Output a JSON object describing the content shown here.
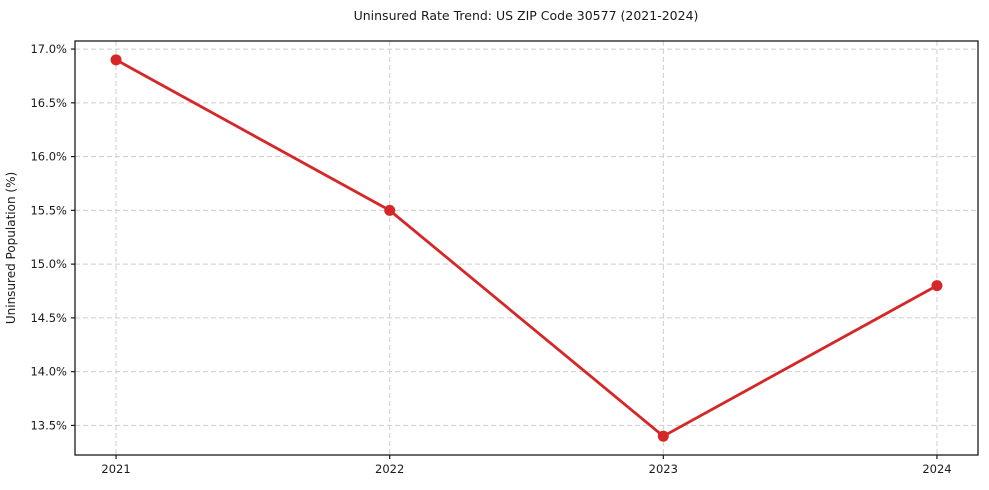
{
  "chart_data": {
    "type": "line",
    "title": "Uninsured Rate Trend: US ZIP Code 30577 (2021-2024)",
    "xlabel": "",
    "ylabel": "Uninsured Population (%)",
    "x": [
      2021,
      2022,
      2023,
      2024
    ],
    "series": [
      {
        "name": "Uninsured Rate",
        "values": [
          16.9,
          15.5,
          13.4,
          14.8
        ]
      }
    ],
    "xlim": [
      2020.85,
      2024.15
    ],
    "ylim": [
      13.225,
      17.075
    ],
    "xticks": [
      2021,
      2022,
      2023,
      2024
    ],
    "xtick_labels": [
      "2021",
      "2022",
      "2023",
      "2024"
    ],
    "yticks": [
      13.5,
      14.0,
      14.5,
      15.0,
      15.5,
      16.0,
      16.5,
      17.0
    ],
    "ytick_labels": [
      "13.5%",
      "14.0%",
      "14.5%",
      "15.0%",
      "15.5%",
      "16.0%",
      "16.5%",
      "17.0%"
    ],
    "grid": true,
    "grid_style": "dashed",
    "legend_position": "none"
  },
  "colors": {
    "line": "#d62728",
    "marker": "#d62728",
    "grid": "#cdcdcd",
    "spine": "#1a1a1a",
    "tick": "#1a1a1a",
    "background": "#ffffff"
  }
}
